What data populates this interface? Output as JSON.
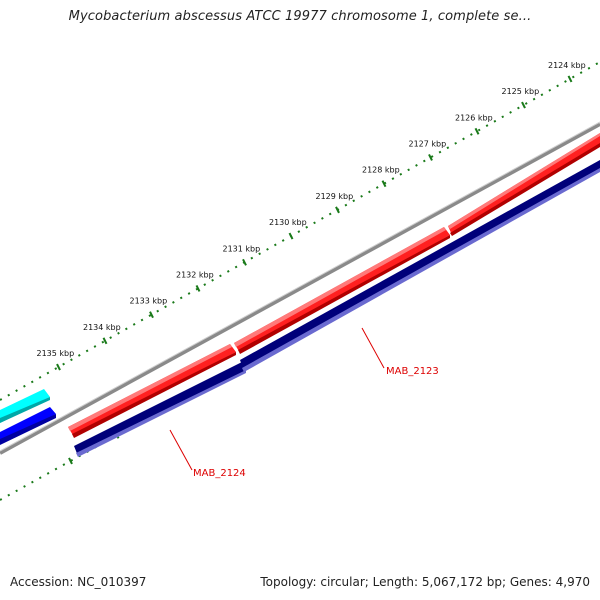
{
  "title": "Mycobacterium abscessus ATCC 19977 chromosome 1, complete se...",
  "footer": {
    "accession": "Accession: NC_010397",
    "summary": "Topology: circular; Length: 5,067,172 bp; Genes: 4,970"
  },
  "colors": {
    "backbone": "#8a8a8a",
    "forward_gene": "#ff0000",
    "reverse_gene": "#000080",
    "neighbor_forward": "#00ffff",
    "neighbor_reverse": "#0000ff",
    "scale": "#1a7a1a",
    "gene_label": "#dd0000"
  },
  "scale_labels": [
    "2124 kbp",
    "2125 kbp",
    "2126 kbp",
    "2127 kbp",
    "2128 kbp",
    "2129 kbp",
    "2130 kbp",
    "2131 kbp",
    "2132 kbp",
    "2133 kbp",
    "2134 kbp",
    "2135 kbp"
  ],
  "gene_labels": {
    "mab_2123": "MAB_2123",
    "mab_2124": "MAB_2124"
  }
}
